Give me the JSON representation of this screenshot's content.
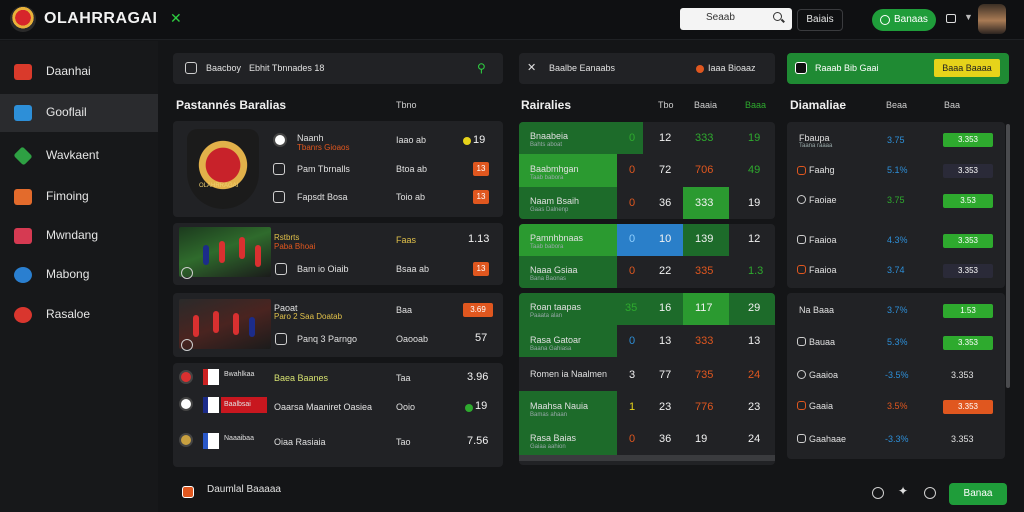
{
  "header": {
    "title": "OLAHRRAGAI",
    "search_placeholder": "Seaab",
    "login_label": "Baiais",
    "join_label": "Banaas"
  },
  "sidebar": {
    "items": [
      {
        "label": "Daanhai",
        "icon": "flag-icon",
        "color": "#d93a2b"
      },
      {
        "label": "Gooflail",
        "icon": "shield-icon",
        "color": "#2d8fd8"
      },
      {
        "label": "Wavkaent",
        "icon": "diamond-icon",
        "color": "#2ea043"
      },
      {
        "label": "Fimoing",
        "icon": "shield-orange-icon",
        "color": "#e36b2c"
      },
      {
        "label": "Mwndang",
        "icon": "chart-icon",
        "color": "#d63a52"
      },
      {
        "label": "Mabong",
        "icon": "circle-icon",
        "color": "#2a7fd0"
      },
      {
        "label": "Rasaloe",
        "icon": "ring-icon",
        "color": "#d9362e"
      }
    ]
  },
  "panel1": {
    "search_label": "Baacboy",
    "search_value": "Ebhit Tbnnades 18",
    "header": "Pastannés Baralias",
    "col": "Tbno",
    "rows": [
      {
        "name": "Naanh",
        "subname": "Tbanrs Gioaos",
        "time": "Iaao ab",
        "value": "19",
        "icon_color": "#2eaa2e"
      },
      {
        "name": "Pam Tbrnalls",
        "time": "Btoa ab",
        "value": "13",
        "icon_color": "#e0571f"
      },
      {
        "name": "Fapsdt Bosa",
        "time": "Toio ab",
        "value": "13",
        "icon_color": "#e0571f"
      },
      {
        "name": "Rstbrts",
        "subname": "Paba Bhoai",
        "time": "Faas",
        "value": "1.13"
      },
      {
        "name": "Bam io Oiaib",
        "time": "Bsaa ab",
        "value": "13",
        "icon_color": "#e0571f"
      },
      {
        "name": "Paoat",
        "subname": "Paro 2 Saa Doatab",
        "time": "Baa",
        "value": "3.69",
        "badge": true
      },
      {
        "name": "Panq 3 Parngo",
        "time": "Oaooab",
        "value": "57"
      },
      {
        "name": "Baea Baanes",
        "team1": "Bwahlkaa",
        "time": "Taa",
        "value": "3.96"
      },
      {
        "name": "Oaarsa Maaniret Oasiea",
        "team1": "Baalbsai",
        "time": "Ooio",
        "value": "19",
        "icon_color": "#2eaa2e"
      },
      {
        "name": "Oiaa Rasiaia",
        "team1": "Naaaibaa",
        "time": "Tao",
        "value": "7.56"
      }
    ],
    "crest_text": "OLAHRRAGAI"
  },
  "panel2": {
    "search_label": "Baalbe Eanaabs",
    "filter_label": "Iaaa Bioaaz",
    "header": "Rairalies",
    "col_a": "Tbo",
    "col_b": "Baaia",
    "col_c": "Baaa",
    "rows": [
      {
        "name": "Bnaabeia",
        "sub": "Bahts aboat",
        "v1": "0",
        "v2": "12",
        "v3": "333",
        "v4": "19"
      },
      {
        "name": "Baabmhgan",
        "sub": "Taab babora",
        "v1": "0",
        "v2": "72",
        "v3": "706",
        "v4": "49"
      },
      {
        "name": "Naam Bsaih",
        "sub": "Gaas Dalnenp",
        "v1": "0",
        "v2": "36",
        "v3": "333",
        "v4": "19"
      },
      {
        "name": "Pamnhbnaas",
        "sub": "Taab babora",
        "v1": "0",
        "v2": "10",
        "v3": "139",
        "v4": "12"
      },
      {
        "name": "Naaa Gsiaa",
        "sub": "Bana Baonas",
        "v1": "0",
        "v2": "22",
        "v3": "335",
        "v4": "1.3"
      },
      {
        "name": "Roan taapas",
        "sub": "Paaata alan",
        "v1": "35",
        "v2": "16",
        "v3": "117",
        "v4": "29"
      },
      {
        "name": "Rasa Gatoar",
        "sub": "Baana Gahiasa",
        "v1": "0",
        "v2": "13",
        "v3": "333",
        "v4": "13"
      },
      {
        "name": "Romen ia Naalmen",
        "sub": "",
        "v1": "3",
        "v2": "77",
        "v3": "735",
        "v4": "24"
      },
      {
        "name": "Maahsa Nauia",
        "sub": "Bamas ahaan",
        "v1": "1",
        "v2": "23",
        "v3": "776",
        "v4": "23"
      },
      {
        "name": "Rasa Baias",
        "sub": "Gaiaa aahion",
        "v1": "0",
        "v2": "36",
        "v3": "19",
        "v4": "24"
      }
    ]
  },
  "panel3": {
    "top_label": "Raaab Bib Gaai",
    "top_button": "Baaa Baaaa",
    "header": "Diamaliae",
    "col_a": "Beaa",
    "col_b": "Baa",
    "rows": [
      {
        "name": "Fbaupa",
        "sub": "Taana raaaa",
        "pct": "3.75",
        "pct_color": "#2d8fd8",
        "odd": "3.353",
        "odd_style": "green"
      },
      {
        "name": "Faahg",
        "sub": "",
        "pct": "5.1%",
        "pct_color": "#2d8fd8",
        "odd": "3.353",
        "odd_style": "dark"
      },
      {
        "name": "Faoiae",
        "sub": "",
        "pct": "3.75",
        "pct_color": "#2eaa2e",
        "odd": "3.53",
        "odd_style": "green"
      },
      {
        "name": "Faaioa",
        "sub": "",
        "pct": "4.3%",
        "pct_color": "#2d8fd8",
        "odd": "3.353",
        "odd_style": "green"
      },
      {
        "name": "Faaioa",
        "sub": "",
        "pct": "3.74",
        "pct_color": "#2d8fd8",
        "odd": "3.353",
        "odd_style": "dark"
      },
      {
        "name": "Na Baaa",
        "sub": "",
        "pct": "3.7%",
        "pct_color": "#2d8fd8",
        "odd": "1.53",
        "odd_style": "green"
      },
      {
        "name": "Bauaa",
        "sub": "",
        "pct": "5.3%",
        "pct_color": "#2d8fd8",
        "odd": "3.353",
        "odd_style": "green"
      },
      {
        "name": "Gaaioa",
        "sub": "",
        "pct": "-3.5%",
        "pct_color": "#2d8fd8",
        "odd": "3.353",
        "odd_style": "plain"
      },
      {
        "name": "Gaaia",
        "sub": "",
        "pct": "3.5%",
        "pct_color": "#e0571f",
        "odd": "3.353",
        "odd_style": "red"
      },
      {
        "name": "Gaahaae",
        "sub": "",
        "pct": "-3.3%",
        "pct_color": "#2d8fd8",
        "odd": "3.353",
        "odd_style": "plain"
      }
    ]
  },
  "footer": {
    "label": "Daumlal Baaaaa",
    "cta": "Banaa"
  }
}
